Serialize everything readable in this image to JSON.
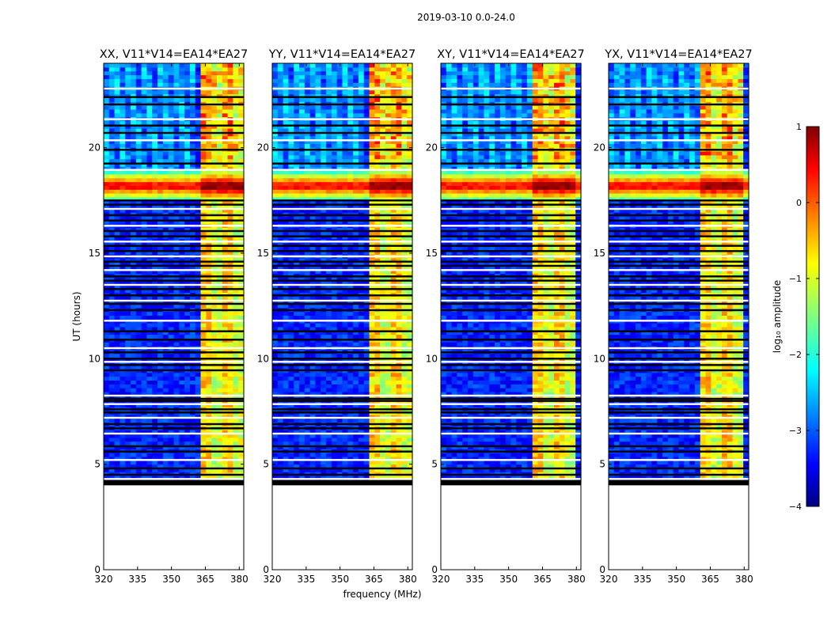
{
  "figure": {
    "suptitle": "2019-03-10 0.0-24.0",
    "xlabel": "frequency (MHz)",
    "ylabel": "UT (hours)"
  },
  "chart_data": {
    "type": "heatmap",
    "x_range_mhz": [
      320,
      382
    ],
    "y_range_hours": [
      0,
      24
    ],
    "x_ticks": [
      320,
      335,
      350,
      365,
      380
    ],
    "y_ticks": [
      0,
      5,
      10,
      15,
      20
    ],
    "panels": [
      {
        "title": "XX, V11*V14=EA14*EA27",
        "pol": "XX"
      },
      {
        "title": "YY, V11*V14=EA14*EA27",
        "pol": "YY"
      },
      {
        "title": "XY, V11*V14=EA14*EA27",
        "pol": "XY"
      },
      {
        "title": "YX, V11*V14=EA14*EA27",
        "pol": "YX"
      }
    ],
    "data_hours_range": [
      4.1,
      24.0
    ],
    "empty_hours_range": [
      0.0,
      4.1
    ],
    "rfi_band_mhz": [
      363.5,
      382
    ],
    "rfi_subbands_mhz": [
      [
        363.5,
        368
      ],
      [
        368,
        372.5
      ],
      [
        372.5,
        377
      ],
      [
        377,
        382
      ]
    ],
    "flare_hours_range": [
      17.4,
      18.9
    ],
    "flare_peak_hours": 18.2,
    "flagged_rows_hours": [
      4.15,
      4.3,
      4.5,
      4.8,
      5.2,
      5.6,
      5.85,
      6.45,
      6.7,
      6.9,
      7.2,
      7.45,
      7.6,
      7.85,
      8.0,
      8.1,
      8.25,
      9.45,
      9.7,
      9.85,
      10.0,
      10.3,
      10.5,
      10.9,
      11.3,
      11.8,
      12.3,
      12.6,
      12.75,
      13.0,
      13.3,
      13.5,
      13.7,
      13.9,
      14.2,
      14.4,
      14.6,
      14.85,
      15.1,
      15.35,
      15.55,
      15.8,
      16.05,
      16.3,
      16.55,
      16.8,
      17.1,
      17.3,
      17.5,
      18.95,
      19.25,
      19.9,
      20.35,
      20.7,
      21.05,
      21.35,
      22.05,
      22.4,
      22.8
    ],
    "colorbar": {
      "label": "log₁₀ amplitude",
      "ticks": [
        1,
        0,
        -1,
        -2,
        -3,
        -4
      ],
      "range": [
        -4,
        1
      ],
      "colormap": "jet"
    },
    "background_level": -3.2,
    "rfi_level": -1.0,
    "flare_level": 0.6
  },
  "colors": {
    "jet": [
      "#000080",
      "#0000ff",
      "#00ffff",
      "#ffff00",
      "#ff0000",
      "#800000"
    ]
  }
}
